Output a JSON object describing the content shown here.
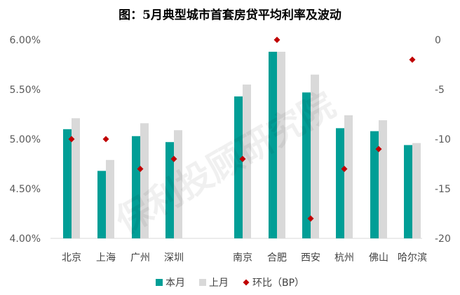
{
  "chart_data": {
    "type": "bar",
    "title": "图：5月典型城市首套房贷平均利率及波动",
    "categories": [
      "北京",
      "上海",
      "广州",
      "深圳",
      "南京",
      "合肥",
      "西安",
      "杭州",
      "佛山",
      "哈尔滨"
    ],
    "series": [
      {
        "name": "本月",
        "type": "bar",
        "axis": "left",
        "color": "#009e96",
        "values": [
          5.1,
          4.68,
          5.03,
          4.97,
          5.43,
          5.88,
          5.47,
          5.11,
          5.08,
          4.94
        ]
      },
      {
        "name": "上月",
        "type": "bar",
        "axis": "left",
        "color": "#d9d9d9",
        "values": [
          5.21,
          4.79,
          5.16,
          5.09,
          5.55,
          5.88,
          5.65,
          5.24,
          5.19,
          4.96
        ]
      },
      {
        "name": "环比（BP）",
        "type": "scatter",
        "axis": "right",
        "color": "#c00000",
        "values": [
          -10,
          -10,
          -13,
          -12,
          -12,
          0,
          -18,
          -13,
          -11,
          -2
        ]
      }
    ],
    "y_left": {
      "min": 4.0,
      "max": 6.0,
      "ticks": [
        "4.00%",
        "4.50%",
        "5.00%",
        "5.50%",
        "6.00%"
      ]
    },
    "y_right": {
      "min": -20,
      "max": 0,
      "ticks": [
        "0",
        "-5",
        "-10",
        "-15",
        "-20"
      ]
    },
    "legend_position": "bottom",
    "grid": false
  },
  "watermark": "保利投顾研究院"
}
